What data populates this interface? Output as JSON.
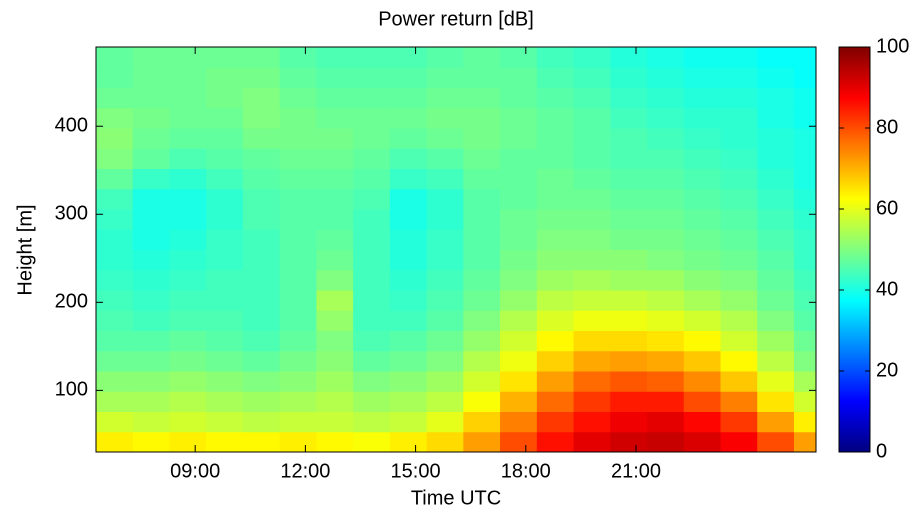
{
  "chart_data": {
    "type": "heatmap",
    "title": "Power return [dB]",
    "x_label": "Time UTC",
    "y_label": "Height [m]",
    "x_edges": [
      6.3,
      7.3,
      8.3,
      9.3,
      10.3,
      11.3,
      12.3,
      13.3,
      14.3,
      15.3,
      16.3,
      17.3,
      18.3,
      19.3,
      20.3,
      21.3,
      22.3,
      23.3,
      24.3,
      25.3,
      25.9
    ],
    "y_edges": [
      30,
      53,
      76,
      99,
      122,
      145,
      168,
      191,
      214,
      237,
      260,
      283,
      306,
      329,
      352,
      375,
      398,
      421,
      444,
      467,
      490
    ],
    "z": [
      [
        64,
        63,
        64,
        63,
        63,
        64,
        63,
        62,
        64,
        66,
        72,
        80,
        86,
        90,
        92,
        93,
        91,
        88,
        80,
        72
      ],
      [
        58,
        57,
        58,
        57,
        56,
        57,
        57,
        56,
        57,
        60,
        67,
        75,
        82,
        86,
        89,
        90,
        87,
        82,
        72,
        64
      ],
      [
        54,
        54,
        55,
        54,
        53,
        54,
        55,
        53,
        54,
        56,
        62,
        70,
        77,
        82,
        85,
        85,
        80,
        75,
        65,
        58
      ],
      [
        51,
        51,
        52,
        51,
        50,
        51,
        53,
        50,
        51,
        53,
        58,
        65,
        72,
        77,
        79,
        78,
        74,
        68,
        60,
        54
      ],
      [
        48,
        48,
        49,
        48,
        47,
        49,
        51,
        47,
        48,
        50,
        55,
        61,
        67,
        71,
        72,
        71,
        68,
        63,
        56,
        50
      ],
      [
        46,
        46,
        47,
        46,
        45,
        47,
        50,
        45,
        46,
        48,
        52,
        58,
        63,
        66,
        66,
        65,
        63,
        58,
        53,
        48
      ],
      [
        45,
        44,
        45,
        45,
        44,
        46,
        52,
        44,
        44,
        46,
        50,
        55,
        59,
        61,
        61,
        60,
        58,
        55,
        50,
        46
      ],
      [
        44,
        43,
        44,
        44,
        44,
        46,
        54,
        44,
        43,
        45,
        48,
        52,
        56,
        57,
        57,
        56,
        54,
        52,
        48,
        45
      ],
      [
        43,
        42,
        43,
        44,
        44,
        46,
        50,
        44,
        42,
        44,
        47,
        50,
        53,
        54,
        53,
        53,
        51,
        50,
        47,
        44
      ],
      [
        42,
        41,
        42,
        43,
        44,
        46,
        48,
        44,
        41,
        43,
        46,
        49,
        51,
        51,
        51,
        50,
        49,
        48,
        46,
        43
      ],
      [
        42,
        40,
        41,
        43,
        44,
        46,
        47,
        44,
        41,
        43,
        46,
        48,
        50,
        50,
        49,
        49,
        48,
        47,
        45,
        43
      ],
      [
        43,
        40,
        40,
        42,
        45,
        46,
        46,
        44,
        40,
        42,
        46,
        48,
        49,
        49,
        48,
        48,
        47,
        46,
        44,
        42
      ],
      [
        44,
        40,
        40,
        42,
        45,
        46,
        46,
        45,
        40,
        42,
        46,
        47,
        48,
        48,
        47,
        47,
        46,
        45,
        43,
        41
      ],
      [
        47,
        43,
        42,
        44,
        46,
        47,
        47,
        46,
        43,
        44,
        47,
        47,
        48,
        47,
        46,
        46,
        45,
        44,
        42,
        40
      ],
      [
        50,
        47,
        45,
        46,
        47,
        48,
        48,
        47,
        45,
        46,
        48,
        47,
        47,
        46,
        45,
        45,
        44,
        43,
        41,
        40
      ],
      [
        51,
        48,
        47,
        47,
        49,
        49,
        49,
        48,
        47,
        48,
        49,
        48,
        47,
        46,
        45,
        44,
        43,
        42,
        41,
        40
      ],
      [
        50,
        49,
        48,
        48,
        50,
        49,
        48,
        48,
        48,
        49,
        49,
        48,
        47,
        46,
        44,
        43,
        42,
        42,
        40,
        39
      ],
      [
        48,
        48,
        48,
        49,
        50,
        48,
        47,
        47,
        47,
        48,
        48,
        47,
        46,
        45,
        43,
        42,
        41,
        41,
        40,
        39
      ],
      [
        47,
        48,
        48,
        49,
        49,
        47,
        46,
        46,
        46,
        47,
        47,
        47,
        45,
        44,
        42,
        41,
        40,
        40,
        39,
        38
      ],
      [
        47,
        48,
        48,
        48,
        48,
        46,
        45,
        45,
        45,
        46,
        47,
        46,
        44,
        43,
        41,
        40,
        39,
        39,
        38,
        38
      ]
    ],
    "xlim": [
      6.3,
      25.9
    ],
    "xticks": [
      {
        "value": 9,
        "label": "09:00"
      },
      {
        "value": 12,
        "label": "12:00"
      },
      {
        "value": 15,
        "label": "15:00"
      },
      {
        "value": 18,
        "label": "18:00"
      },
      {
        "value": 21,
        "label": "21:00"
      }
    ],
    "ylim": [
      30,
      490
    ],
    "yticks": [
      100,
      200,
      300,
      400
    ],
    "colormap": "jet",
    "clim": [
      0,
      100
    ],
    "cticks": [
      0,
      20,
      40,
      60,
      80,
      100
    ]
  }
}
